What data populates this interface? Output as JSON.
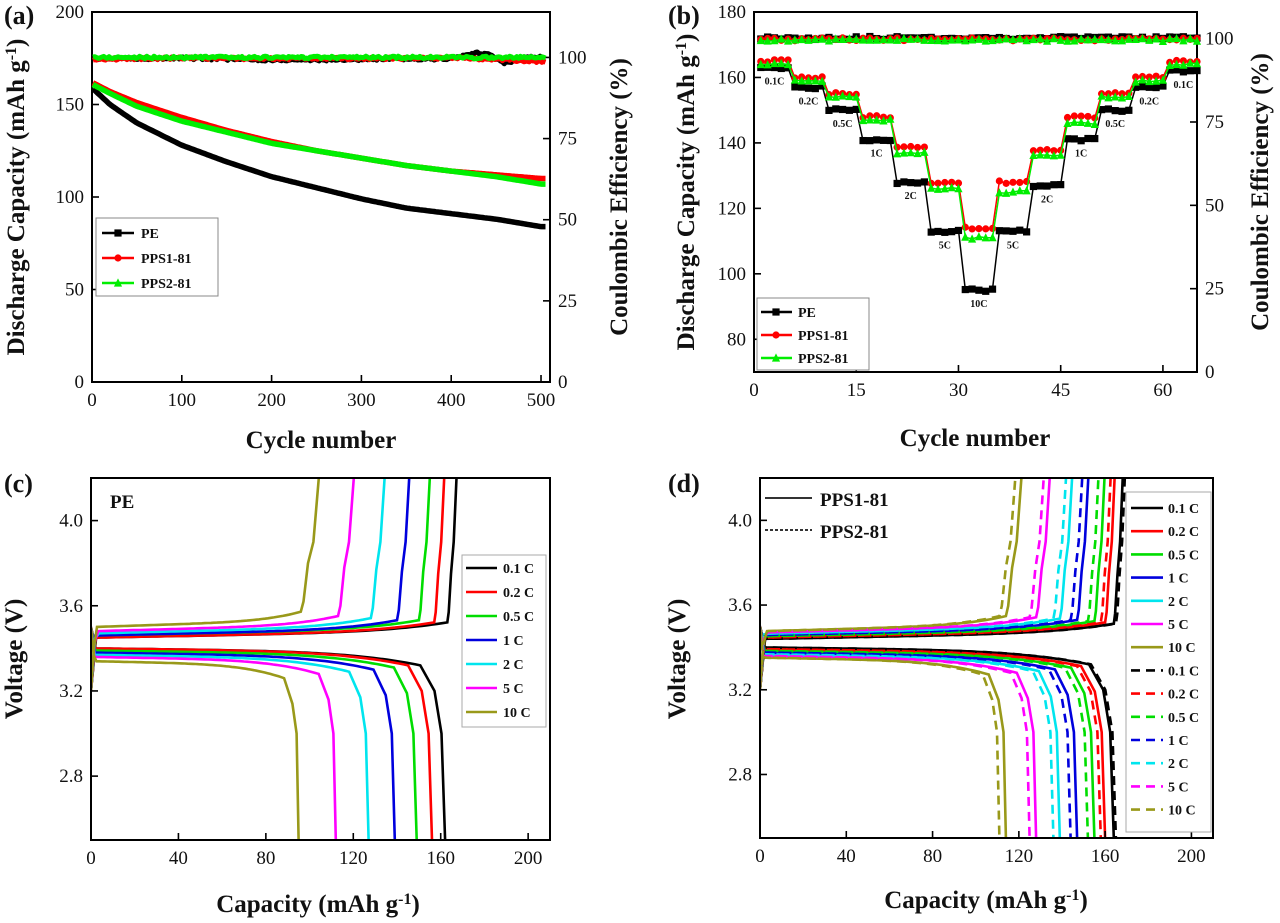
{
  "figure": {
    "panel_labels": [
      "(a)",
      "(b)",
      "(c)",
      "(d)"
    ]
  },
  "chart_data": [
    {
      "panel": "(a)",
      "type": "line",
      "xlabel": "Cycle number",
      "ylabel": "Discharge Capacity (mAh g",
      "ylabel_sup": "-1",
      "ylabel_close": ")",
      "y2label": "Coulombic Efficiency (%)",
      "xlim": [
        0,
        510
      ],
      "ylim": [
        0,
        200
      ],
      "y2lim": [
        0,
        114
      ],
      "xticks": [
        0,
        100,
        200,
        300,
        400,
        500
      ],
      "yticks": [
        0,
        50,
        100,
        150,
        200
      ],
      "y2ticks": [
        0,
        25,
        50,
        75,
        100
      ],
      "legend": [
        "PE",
        "PPS1-81",
        "PPS2-81"
      ],
      "legend_position": "middle-left",
      "series": [
        {
          "name": "PE",
          "color": "#000000",
          "marker": "square",
          "capacity": [
            [
              0,
              159
            ],
            [
              20,
              150
            ],
            [
              50,
              140
            ],
            [
              100,
              128
            ],
            [
              150,
              119
            ],
            [
              200,
              111
            ],
            [
              250,
              105
            ],
            [
              300,
              99
            ],
            [
              350,
              94
            ],
            [
              400,
              91
            ],
            [
              450,
              88
            ],
            [
              500,
              84
            ]
          ],
          "efficiency": [
            [
              0,
              99.6
            ],
            [
              100,
              99.8
            ],
            [
              200,
              99.2
            ],
            [
              300,
              99.4
            ],
            [
              400,
              99.6
            ],
            [
              430,
              101.5
            ],
            [
              440,
              101
            ],
            [
              460,
              98.2
            ],
            [
              480,
              100
            ],
            [
              500,
              100
            ]
          ]
        },
        {
          "name": "PPS1-81",
          "color": "#ff0000",
          "marker": "circle",
          "capacity": [
            [
              0,
              162
            ],
            [
              20,
              157
            ],
            [
              50,
              151
            ],
            [
              100,
              143
            ],
            [
              150,
              136
            ],
            [
              200,
              130
            ],
            [
              250,
              125
            ],
            [
              300,
              121
            ],
            [
              350,
              117
            ],
            [
              400,
              114
            ],
            [
              450,
              112
            ],
            [
              500,
              110
            ]
          ],
          "efficiency": [
            [
              0,
              99.5
            ],
            [
              100,
              99.8
            ],
            [
              200,
              99.6
            ],
            [
              300,
              99.7
            ],
            [
              400,
              99.8
            ],
            [
              450,
              99.5
            ],
            [
              500,
              98.6
            ]
          ]
        },
        {
          "name": "PPS2-81",
          "color": "#00ee00",
          "marker": "triangle",
          "capacity": [
            [
              0,
              161
            ],
            [
              20,
              156
            ],
            [
              50,
              149
            ],
            [
              100,
              141
            ],
            [
              150,
              135
            ],
            [
              200,
              129
            ],
            [
              250,
              125
            ],
            [
              300,
              121
            ],
            [
              350,
              117
            ],
            [
              400,
              114
            ],
            [
              450,
              111
            ],
            [
              500,
              107
            ]
          ],
          "efficiency": [
            [
              0,
              100
            ],
            [
              100,
              100
            ],
            [
              200,
              100
            ],
            [
              300,
              100
            ],
            [
              400,
              100
            ],
            [
              500,
              100
            ]
          ]
        }
      ]
    },
    {
      "panel": "(b)",
      "type": "line",
      "xlabel": "Cycle number",
      "ylabel": "Discharge Capacity (mAh g",
      "ylabel_sup": "-1",
      "ylabel_close": ")",
      "y2label": "Coulombic Efficiency (%)",
      "xlim": [
        0,
        65
      ],
      "ylim": [
        70,
        180
      ],
      "y2lim": [
        0,
        108
      ],
      "xticks": [
        0,
        15,
        30,
        45,
        60
      ],
      "yticks": [
        80,
        100,
        120,
        140,
        160,
        180
      ],
      "y2ticks": [
        0,
        25,
        50,
        75,
        100
      ],
      "legend": [
        "PE",
        "PPS1-81",
        "PPS2-81"
      ],
      "legend_position": "bottom-left",
      "rates": [
        "0.1C",
        "0.2C",
        "0.5C",
        "1C",
        "2C",
        "5C",
        "10C",
        "5C",
        "2C",
        "1C",
        "0.5C",
        "0.2C",
        "0.1C"
      ],
      "series": [
        {
          "name": "PE",
          "color": "#000000",
          "marker": "square",
          "rate_capacity": [
            163,
            157,
            150,
            141,
            128,
            113,
            95,
            113,
            127,
            141,
            150,
            157,
            162
          ],
          "efficiency": 100.2
        },
        {
          "name": "PPS1-81",
          "color": "#ff0000",
          "marker": "circle",
          "rate_capacity": [
            165,
            160,
            155,
            148,
            139,
            128,
            114,
            128,
            138,
            148,
            155,
            160,
            165
          ],
          "efficiency": 99.8
        },
        {
          "name": "PPS2-81",
          "color": "#00ee00",
          "marker": "triangle",
          "rate_capacity": [
            164,
            159,
            154,
            147,
            137,
            126,
            111,
            125,
            136,
            146,
            154,
            159,
            164
          ],
          "efficiency": 99.6
        }
      ]
    },
    {
      "panel": "(c)",
      "type": "line",
      "xlabel": "Capacity (mAh g",
      "xlabel_sup": "-1",
      "xlabel_close": ")",
      "ylabel": "Voltage (V)",
      "xlim": [
        0,
        210
      ],
      "ylim": [
        2.5,
        4.2
      ],
      "xticks": [
        0,
        40,
        80,
        120,
        160,
        200
      ],
      "yticks": [
        2.8,
        3.2,
        3.6,
        4.0
      ],
      "inset_label": "PE",
      "legend_position": "right",
      "series": [
        {
          "name": "0.1 C",
          "color": "#000000",
          "charge_capacity": 163,
          "discharge_capacity": 162,
          "charge_plateau": 3.45,
          "discharge_plateau": 3.4
        },
        {
          "name": "0.2 C",
          "color": "#ff0000",
          "charge_capacity": 157,
          "discharge_capacity": 156,
          "charge_plateau": 3.45,
          "discharge_plateau": 3.4
        },
        {
          "name": "0.5 C",
          "color": "#00dd00",
          "charge_capacity": 150,
          "discharge_capacity": 149,
          "charge_plateau": 3.46,
          "discharge_plateau": 3.39
        },
        {
          "name": "1 C",
          "color": "#0000dd",
          "charge_capacity": 140,
          "discharge_capacity": 139,
          "charge_plateau": 3.46,
          "discharge_plateau": 3.38
        },
        {
          "name": "2 C",
          "color": "#00e5ee",
          "charge_capacity": 128,
          "discharge_capacity": 127,
          "charge_plateau": 3.47,
          "discharge_plateau": 3.37
        },
        {
          "name": "5 C",
          "color": "#ff00ff",
          "charge_capacity": 113,
          "discharge_capacity": 112,
          "charge_plateau": 3.48,
          "discharge_plateau": 3.36
        },
        {
          "name": "10 C",
          "color": "#99991a",
          "charge_capacity": 96,
          "discharge_capacity": 95,
          "charge_plateau": 3.5,
          "discharge_plateau": 3.34
        }
      ]
    },
    {
      "panel": "(d)",
      "type": "line",
      "xlabel": "Capacity (mAh g",
      "xlabel_sup": "-1",
      "xlabel_close": ")",
      "ylabel": "Voltage (V)",
      "xlim": [
        0,
        210
      ],
      "ylim": [
        2.5,
        4.2
      ],
      "xticks": [
        0,
        40,
        80,
        120,
        160,
        200
      ],
      "yticks": [
        2.8,
        3.2,
        3.6,
        4.0
      ],
      "style_legend": [
        {
          "name": "PPS1-81",
          "style": "solid"
        },
        {
          "name": "PPS2-81",
          "style": "dashed"
        }
      ],
      "legend_position": "right",
      "series": [
        {
          "name": "0.1 C",
          "color": "#000000",
          "group": "PPS1-81",
          "style": "solid",
          "capacity": 164
        },
        {
          "name": "0.2 C",
          "color": "#ff0000",
          "group": "PPS1-81",
          "style": "solid",
          "capacity": 160
        },
        {
          "name": "0.5 C",
          "color": "#00dd00",
          "group": "PPS1-81",
          "style": "solid",
          "capacity": 155
        },
        {
          "name": "1 C",
          "color": "#0000dd",
          "group": "PPS1-81",
          "style": "solid",
          "capacity": 147
        },
        {
          "name": "2 C",
          "color": "#00e5ee",
          "group": "PPS1-81",
          "style": "solid",
          "capacity": 139
        },
        {
          "name": "5 C",
          "color": "#ff00ff",
          "group": "PPS1-81",
          "style": "solid",
          "capacity": 128
        },
        {
          "name": "10 C",
          "color": "#99991a",
          "group": "PPS1-81",
          "style": "solid",
          "capacity": 114
        },
        {
          "name": "0.1 C",
          "color": "#000000",
          "group": "PPS2-81",
          "style": "dashed",
          "capacity": 165
        },
        {
          "name": "0.2 C",
          "color": "#ff0000",
          "group": "PPS2-81",
          "style": "dashed",
          "capacity": 158
        },
        {
          "name": "0.5 C",
          "color": "#00dd00",
          "group": "PPS2-81",
          "style": "dashed",
          "capacity": 152
        },
        {
          "name": "1 C",
          "color": "#0000dd",
          "group": "PPS2-81",
          "style": "dashed",
          "capacity": 144
        },
        {
          "name": "2 C",
          "color": "#00e5ee",
          "group": "PPS2-81",
          "style": "dashed",
          "capacity": 136
        },
        {
          "name": "5 C",
          "color": "#ff00ff",
          "group": "PPS2-81",
          "style": "dashed",
          "capacity": 125
        },
        {
          "name": "10 C",
          "color": "#99991a",
          "group": "PPS2-81",
          "style": "dashed",
          "capacity": 111
        }
      ]
    }
  ]
}
